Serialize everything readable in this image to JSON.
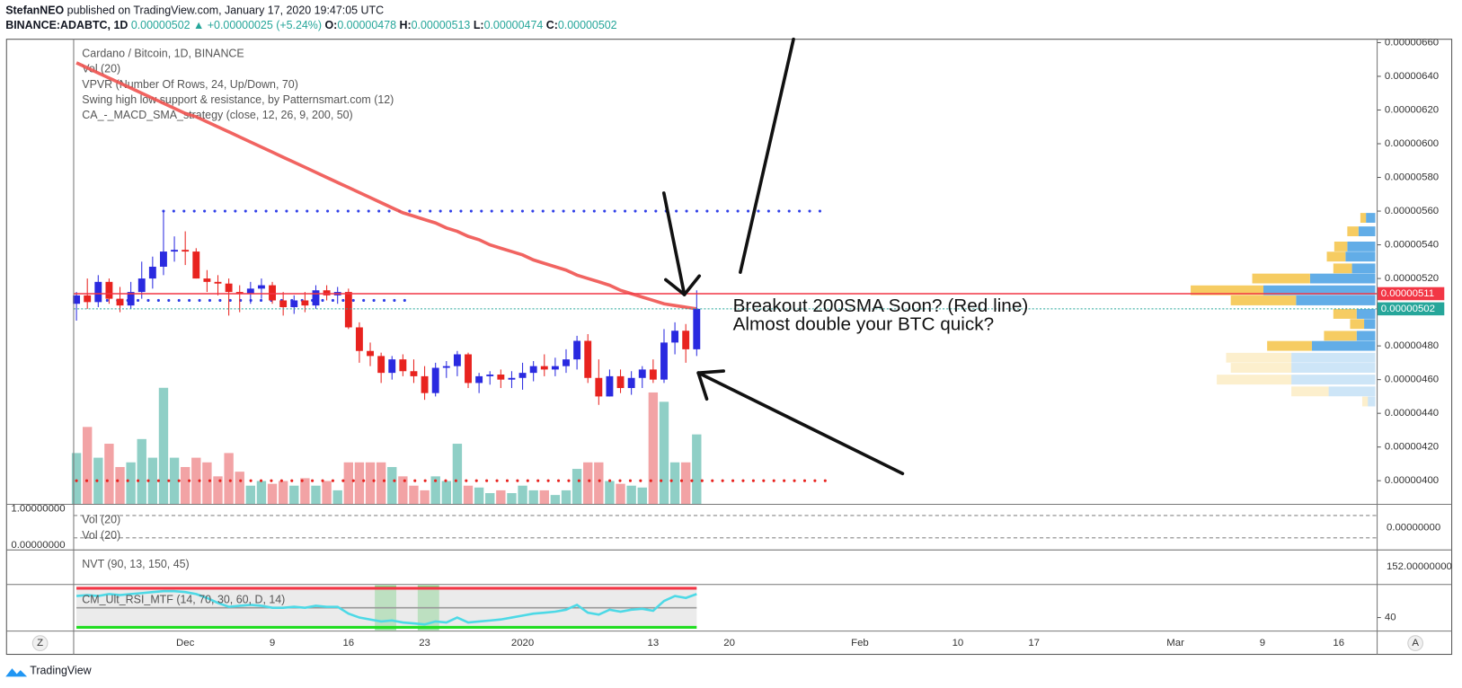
{
  "header": {
    "author": "StefanNEO",
    "published": "published on TradingView.com, January 17, 2020 19:47:05 UTC",
    "symbol": "BINANCE:ADABTC, 1D",
    "last": "0.00000502",
    "change": "▲ +0.00000025 (+5.24%)",
    "o_label": "O:",
    "o": "0.00000478",
    "h_label": "H:",
    "h": "0.00000513",
    "l_label": "L:",
    "l": "0.00000474",
    "c_label": "C:",
    "c": "0.00000502"
  },
  "chart_data": {
    "type": "candlestick",
    "legend": [
      "Cardano / Bitcoin, 1D, BINANCE",
      "Vol (20)",
      "VPVR (Number Of Rows, 24, Up/Down, 70)",
      "Swing high low support & resistance, by Patternsmart.com (12)",
      "CA_-_MACD_SMA_strategy (close, 12, 26, 9, 200, 50)"
    ],
    "annotations": [
      "Breakout 200SMA Soon? (Red line)",
      "Almost double your BTC quick?"
    ],
    "categories": [
      null,
      null,
      null,
      null,
      null,
      null,
      null,
      null,
      null,
      null,
      "Dec",
      null,
      null,
      null,
      null,
      null,
      null,
      null,
      "9",
      null,
      null,
      null,
      null,
      null,
      null,
      "16",
      null,
      null,
      null,
      null,
      null,
      null,
      "23",
      null,
      null,
      null,
      null,
      null,
      null,
      null,
      null,
      "2020",
      null,
      null,
      null,
      null,
      null,
      null,
      null,
      null,
      null,
      null,
      null,
      "13",
      null,
      null,
      null,
      null
    ],
    "future_dates": [
      "20",
      "Feb",
      "10",
      "17",
      "Mar",
      "9",
      "16"
    ],
    "open": [
      5.05e-06,
      5.1e-06,
      5.06e-06,
      5.18e-06,
      5.08e-06,
      5.04e-06,
      5.12e-06,
      5.2e-06,
      5.27e-06,
      5.36e-06,
      5.37e-06,
      5.36e-06,
      5.2e-06,
      5.18e-06,
      5.17e-06,
      5.12e-06,
      5.11e-06,
      5.14e-06,
      5.16e-06,
      5.07e-06,
      5.03e-06,
      5.07e-06,
      5.04e-06,
      5.13e-06,
      5.1e-06,
      5.12e-06,
      4.91e-06,
      4.77e-06,
      4.74e-06,
      4.64e-06,
      4.72e-06,
      4.65e-06,
      4.62e-06,
      4.52e-06,
      4.67e-06,
      4.68e-06,
      4.75e-06,
      4.58e-06,
      4.62e-06,
      4.63e-06,
      4.6e-06,
      4.61e-06,
      4.64e-06,
      4.68e-06,
      4.66e-06,
      4.68e-06,
      4.72e-06,
      4.83e-06,
      4.61e-06,
      4.5e-06,
      4.62e-06,
      4.55e-06,
      4.61e-06,
      4.66e-06,
      4.6e-06,
      4.82e-06,
      4.89e-06,
      4.78e-06
    ],
    "high": [
      5.12e-06,
      5.2e-06,
      5.22e-06,
      5.2e-06,
      5.15e-06,
      5.18e-06,
      5.3e-06,
      5.33e-06,
      5.6e-06,
      5.45e-06,
      5.48e-06,
      5.38e-06,
      5.25e-06,
      5.22e-06,
      5.2e-06,
      5.16e-06,
      5.18e-06,
      5.2e-06,
      5.18e-06,
      5.12e-06,
      5.1e-06,
      5.12e-06,
      5.16e-06,
      5.16e-06,
      5.15e-06,
      5.14e-06,
      4.94e-06,
      4.82e-06,
      4.76e-06,
      4.74e-06,
      4.75e-06,
      4.72e-06,
      4.68e-06,
      4.7e-06,
      4.71e-06,
      4.77e-06,
      4.76e-06,
      4.64e-06,
      4.65e-06,
      4.66e-06,
      4.65e-06,
      4.7e-06,
      4.71e-06,
      4.75e-06,
      4.73e-06,
      4.78e-06,
      4.86e-06,
      4.87e-06,
      4.72e-06,
      4.66e-06,
      4.66e-06,
      4.65e-06,
      4.68e-06,
      4.72e-06,
      4.9e-06,
      4.94e-06,
      4.93e-06,
      5.13e-06
    ],
    "low": [
      4.95e-06,
      5.02e-06,
      5.03e-06,
      5.05e-06,
      5e-06,
      5.02e-06,
      5.08e-06,
      5.14e-06,
      5.22e-06,
      5.3e-06,
      5.28e-06,
      5.2e-06,
      5.12e-06,
      5.1e-06,
      4.98e-06,
      5e-06,
      5.05e-06,
      5.08e-06,
      5.05e-06,
      4.98e-06,
      4.99e-06,
      5e-06,
      5.02e-06,
      5.07e-06,
      5.05e-06,
      4.9e-06,
      4.7e-06,
      4.68e-06,
      4.58e-06,
      4.6e-06,
      4.62e-06,
      4.58e-06,
      4.48e-06,
      4.5e-06,
      4.61e-06,
      4.62e-06,
      4.55e-06,
      4.52e-06,
      4.57e-06,
      4.55e-06,
      4.55e-06,
      4.54e-06,
      4.59e-06,
      4.62e-06,
      4.62e-06,
      4.64e-06,
      4.66e-06,
      4.58e-06,
      4.45e-06,
      4.5e-06,
      4.52e-06,
      4.51e-06,
      4.55e-06,
      4.58e-06,
      4.58e-06,
      4.75e-06,
      4.7e-06,
      4.74e-06
    ],
    "close": [
      5.1e-06,
      5.06e-06,
      5.18e-06,
      5.08e-06,
      5.04e-06,
      5.12e-06,
      5.2e-06,
      5.27e-06,
      5.36e-06,
      5.37e-06,
      5.36e-06,
      5.2e-06,
      5.18e-06,
      5.17e-06,
      5.12e-06,
      5.11e-06,
      5.14e-06,
      5.16e-06,
      5.07e-06,
      5.03e-06,
      5.07e-06,
      5.04e-06,
      5.13e-06,
      5.1e-06,
      5.12e-06,
      4.91e-06,
      4.77e-06,
      4.74e-06,
      4.64e-06,
      4.72e-06,
      4.65e-06,
      4.62e-06,
      4.52e-06,
      4.67e-06,
      4.68e-06,
      4.75e-06,
      4.58e-06,
      4.62e-06,
      4.63e-06,
      4.6e-06,
      4.61e-06,
      4.64e-06,
      4.68e-06,
      4.66e-06,
      4.68e-06,
      4.72e-06,
      4.83e-06,
      4.61e-06,
      4.5e-06,
      4.62e-06,
      4.55e-06,
      4.61e-06,
      4.66e-06,
      4.6e-06,
      4.82e-06,
      4.89e-06,
      4.78e-06,
      5.02e-06
    ],
    "up_color": "#2a2ae0",
    "down_color": "#e8231f",
    "volume": [
      55,
      83,
      50,
      65,
      40,
      45,
      70,
      50,
      125,
      50,
      40,
      50,
      45,
      30,
      55,
      35,
      20,
      25,
      22,
      25,
      20,
      28,
      20,
      25,
      15,
      45,
      45,
      45,
      45,
      40,
      30,
      20,
      15,
      30,
      25,
      65,
      20,
      18,
      12,
      15,
      12,
      20,
      15,
      15,
      10,
      15,
      38,
      45,
      45,
      25,
      22,
      20,
      18,
      120,
      110,
      45,
      45,
      75
    ],
    "volume_up_color": "#8fcfc6",
    "volume_down_color": "#f2a3a5",
    "sma200": {
      "color": "#ef5350",
      "values": [
        6.48e-06,
        6.45e-06,
        6.42e-06,
        6.39e-06,
        6.36e-06,
        6.33e-06,
        6.3e-06,
        6.27e-06,
        6.24e-06,
        6.21e-06,
        6.18e-06,
        6.16e-06,
        6.13e-06,
        6.1e-06,
        6.07e-06,
        6.04e-06,
        6.01e-06,
        5.98e-06,
        5.95e-06,
        5.92e-06,
        5.89e-06,
        5.86e-06,
        5.83e-06,
        5.8e-06,
        5.77e-06,
        5.74e-06,
        5.71e-06,
        5.68e-06,
        5.65e-06,
        5.62e-06,
        5.59e-06,
        5.57e-06,
        5.55e-06,
        5.53e-06,
        5.5e-06,
        5.48e-06,
        5.45e-06,
        5.43e-06,
        5.4e-06,
        5.38e-06,
        5.36e-06,
        5.34e-06,
        5.31e-06,
        5.29e-06,
        5.27e-06,
        5.25e-06,
        5.22e-06,
        5.2e-06,
        5.18e-06,
        5.16e-06,
        5.13e-06,
        5.11e-06,
        5.09e-06,
        5.07e-06,
        5.05e-06,
        5.04e-06,
        5.03e-06,
        5.02e-06
      ]
    },
    "ylim": [
      3.86e-06,
      6.62e-06
    ],
    "yticks": [
      {
        "value": 4e-06,
        "label": "0.00000400"
      },
      {
        "value": 4.2e-06,
        "label": "0.00000420"
      },
      {
        "value": 4.4e-06,
        "label": "0.00000440"
      },
      {
        "value": 4.6e-06,
        "label": "0.00000460"
      },
      {
        "value": 4.8e-06,
        "label": "0.00000480"
      },
      {
        "value": 5e-06,
        "label": "0.00000500"
      },
      {
        "value": 5.2e-06,
        "label": "0.00000520"
      },
      {
        "value": 5.4e-06,
        "label": "0.00000540"
      },
      {
        "value": 5.6e-06,
        "label": "0.00000560"
      },
      {
        "value": 5.8e-06,
        "label": "0.00000580"
      },
      {
        "value": 6e-06,
        "label": "0.00000600"
      },
      {
        "value": 6.2e-06,
        "label": "0.00000620"
      },
      {
        "value": 6.4e-06,
        "label": "0.00000640"
      },
      {
        "value": 6.6e-06,
        "label": "0.00000660"
      }
    ],
    "grid": false,
    "price_lines": [
      {
        "value": 5.11e-06,
        "label": "0.00000511",
        "color": "#f23645",
        "dashed": false
      },
      {
        "value": 5.02e-06,
        "label": "0.00000502",
        "color": "#26a69a",
        "dashed": true
      }
    ],
    "levels": [
      {
        "value": 5.6e-06,
        "color": "#2f3ee8"
      },
      {
        "value": 5.07e-06,
        "color": "#2f3ee8"
      },
      {
        "value": 4e-06,
        "color": "#e8231f"
      }
    ],
    "vpvr": {
      "up_color": "#5aa9e6",
      "down_color": "#f5c95a",
      "value_area_low": 4.77e-06,
      "rows": [
        {
          "price": 5.56e-06,
          "up": 10,
          "down": 6
        },
        {
          "price": 5.48e-06,
          "up": 18,
          "down": 12
        },
        {
          "price": 5.39e-06,
          "up": 30,
          "down": 14
        },
        {
          "price": 5.33e-06,
          "up": 32,
          "down": 20
        },
        {
          "price": 5.26e-06,
          "up": 25,
          "down": 20
        },
        {
          "price": 5.2e-06,
          "up": 70,
          "down": 62
        },
        {
          "price": 5.13e-06,
          "up": 120,
          "down": 78
        },
        {
          "price": 5.07e-06,
          "up": 85,
          "down": 70
        },
        {
          "price": 4.99e-06,
          "up": 20,
          "down": 25
        },
        {
          "price": 4.93e-06,
          "up": 12,
          "down": 15
        },
        {
          "price": 4.86e-06,
          "up": 20,
          "down": 35
        },
        {
          "price": 4.8e-06,
          "up": 68,
          "down": 48
        },
        {
          "price": 4.73e-06,
          "up": 90,
          "down": 70
        },
        {
          "price": 4.67e-06,
          "up": 90,
          "down": 65
        },
        {
          "price": 4.6e-06,
          "up": 90,
          "down": 80
        },
        {
          "price": 4.53e-06,
          "up": 50,
          "down": 40
        },
        {
          "price": 4.47e-06,
          "up": 8,
          "down": 6
        }
      ]
    },
    "panes": {
      "vol": {
        "labels": [
          "Vol (20)",
          "Vol (20)"
        ],
        "left_ticks": [
          {
            "value": 1,
            "label": "1.00000000"
          },
          {
            "value": 0,
            "label": "0.00000000"
          }
        ],
        "right_tick": {
          "value": 0,
          "label": "0.00000000"
        }
      },
      "nvt": {
        "label": "NVT (90, 13, 150, 45)",
        "right_tick": {
          "value": 152,
          "label": "152.00000000"
        }
      },
      "rsi": {
        "label": "CM_Ult_RSI_MTF (14, 70, 30, 60, D, 14)",
        "color": "#4dd9e6",
        "ylim": [
          30,
          71
        ],
        "yticks": [
          40
        ],
        "bands": [
          {
            "value": 70,
            "color": "#f23645"
          },
          {
            "value": 50,
            "color": "#999999"
          },
          {
            "value": 30,
            "color": "#22dd22"
          }
        ],
        "values": [
          62,
          63,
          62,
          64,
          63,
          64,
          65,
          66,
          67,
          67,
          66,
          64,
          60,
          55,
          51,
          52,
          53,
          52,
          50,
          50,
          51,
          50,
          52,
          51,
          51,
          44,
          40,
          38,
          36,
          37,
          35,
          34,
          33,
          36,
          35,
          40,
          35,
          36,
          37,
          38,
          40,
          42,
          44,
          45,
          46,
          48,
          53,
          45,
          43,
          48,
          46,
          48,
          49,
          47,
          57,
          62,
          60,
          64
        ]
      }
    }
  },
  "toolbar": {
    "left": "Z",
    "right": "A"
  },
  "footer": {
    "brand": "TradingView"
  }
}
